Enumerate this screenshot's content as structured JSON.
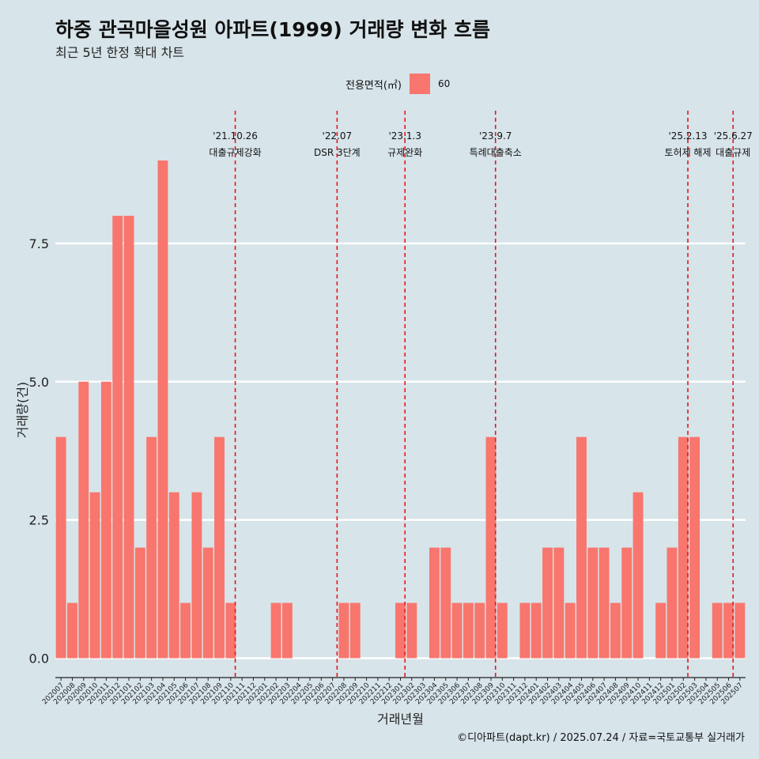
{
  "title": "하중 관곡마을성원 아파트(1999) 거래량 변화 흐름",
  "subtitle": "최근 5년 한정 확대 차트",
  "legend": {
    "title": "전용면적(㎡)",
    "items": [
      {
        "label": "60",
        "color": "#f8766d"
      }
    ]
  },
  "footer": "©디아파트(dapt.kr) / 2025.07.24 / 자료=국토교통부 실거래가",
  "chart_data": {
    "type": "bar",
    "title": "하중 관곡마을성원 아파트(1999) 거래량 변화 흐름",
    "xlabel": "거래년월",
    "ylabel": "거래량(건)",
    "ylim": [
      -0.35,
      9.9
    ],
    "yticks": [
      0.0,
      2.5,
      5.0,
      7.5
    ],
    "ytick_labels": [
      "0.0",
      "2.5",
      "5.0",
      "7.5"
    ],
    "categories": [
      "202007",
      "202008",
      "202009",
      "202010",
      "202011",
      "202012",
      "202101",
      "202102",
      "202103",
      "202104",
      "202105",
      "202106",
      "202107",
      "202108",
      "202109",
      "202110",
      "202111",
      "202112",
      "202201",
      "202202",
      "202203",
      "202204",
      "202205",
      "202206",
      "202207",
      "202208",
      "202209",
      "202210",
      "202211",
      "202212",
      "202301",
      "202302",
      "202303",
      "202304",
      "202305",
      "202306",
      "202307",
      "202308",
      "202309",
      "202310",
      "202311",
      "202312",
      "202401",
      "202402",
      "202403",
      "202404",
      "202405",
      "202406",
      "202407",
      "202408",
      "202409",
      "202410",
      "202411",
      "202412",
      "202501",
      "202502",
      "202503",
      "202504",
      "202505",
      "202506",
      "202507"
    ],
    "series": [
      {
        "name": "60",
        "color": "#f8766d",
        "values": [
          4,
          1,
          5,
          3,
          5,
          8,
          8,
          2,
          4,
          9,
          3,
          1,
          3,
          2,
          4,
          1,
          0,
          0,
          0,
          1,
          1,
          0,
          0,
          0,
          0,
          1,
          1,
          0,
          0,
          0,
          1,
          1,
          0,
          2,
          2,
          1,
          1,
          1,
          4,
          1,
          0,
          1,
          1,
          2,
          2,
          1,
          4,
          2,
          2,
          1,
          2,
          3,
          0,
          1,
          2,
          4,
          4,
          0,
          1,
          1,
          1
        ]
      }
    ],
    "annotations": [
      {
        "x": 15.4,
        "date": "'21.10.26",
        "label": "대출규제강화"
      },
      {
        "x": 24.4,
        "date": "'22.07",
        "label": "DSR 3단계"
      },
      {
        "x": 30.4,
        "date": "'23.1.3",
        "label": "규제완화"
      },
      {
        "x": 38.4,
        "date": "'23.9.7",
        "label": "특례대출축소"
      },
      {
        "x": 55.4,
        "date": "'25.2.13",
        "label": "토허제 해제"
      },
      {
        "x": 59.4,
        "date": "'25.6.27",
        "label": "대출규제"
      }
    ],
    "grid": true,
    "legend_position": "top"
  }
}
